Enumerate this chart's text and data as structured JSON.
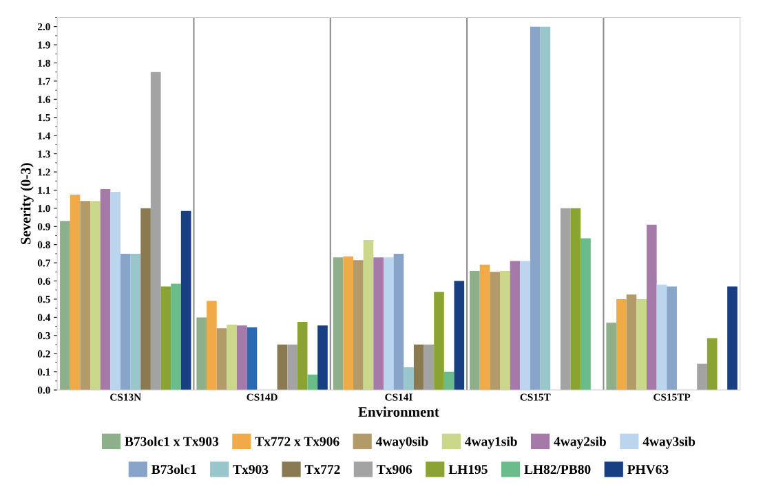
{
  "chart_data": {
    "type": "bar",
    "xlabel": "Environment",
    "ylabel": "Severity (0-3)",
    "categories": [
      "CS13N",
      "CS14D",
      "CS14I",
      "CS15T",
      "CS15TP"
    ],
    "ylim": [
      0,
      2.05
    ],
    "yticks": [
      {
        "value": 0,
        "label": "0.0"
      },
      {
        "value": 0.1,
        "label": "0.1"
      },
      {
        "value": 0.2,
        "label": "0.2"
      },
      {
        "value": 0.3,
        "label": "0.3"
      },
      {
        "value": 0.4,
        "label": "0.4"
      },
      {
        "value": 0.5,
        "label": "0.5"
      },
      {
        "value": 0.6,
        "label": "0.6"
      },
      {
        "value": 0.7,
        "label": "0.7"
      },
      {
        "value": 0.8,
        "label": "0.8"
      },
      {
        "value": 0.9,
        "label": "0.9"
      },
      {
        "value": 1,
        "label": "1.0"
      },
      {
        "value": 1.1,
        "label": "1.1"
      },
      {
        "value": 1.2,
        "label": "1.2"
      },
      {
        "value": 1.3,
        "label": "1.3"
      },
      {
        "value": 1.4,
        "label": "1.4"
      },
      {
        "value": 1.5,
        "label": "1.5"
      },
      {
        "value": 1.6,
        "label": "1.6"
      },
      {
        "value": 1.7,
        "label": "1.7"
      },
      {
        "value": 1.8,
        "label": "1.8"
      },
      {
        "value": 1.9,
        "label": "1.9"
      },
      {
        "value": 2,
        "label": "2.0"
      }
    ],
    "grid": false,
    "legend": "bottom",
    "series": [
      {
        "name": "B73olc1 x Tx903",
        "color": "#8db08a",
        "values": [
          0.93,
          0.4,
          0.73,
          0.655,
          0.37
        ]
      },
      {
        "name": "Tx772 x Tx906",
        "color": "#f0ab48",
        "values": [
          1.075,
          0.49,
          0.735,
          0.69,
          0.5
        ]
      },
      {
        "name": "4way0sib",
        "color": "#b39b69",
        "values": [
          1.04,
          0.34,
          0.715,
          0.65,
          0.525
        ]
      },
      {
        "name": "4way1sib",
        "color": "#cbd78a",
        "values": [
          1.04,
          0.36,
          0.825,
          0.655,
          0.5
        ]
      },
      {
        "name": "4way2sib",
        "color": "#a57aa8",
        "values": [
          1.105,
          0.355,
          0.73,
          0.71,
          0.91
        ]
      },
      {
        "name": "4way3sib",
        "color": "#bcd5ee",
        "colors": [
          "#bcd5ee",
          "#2b6ab0",
          "#bcd5ee",
          "#bcd5ee",
          "#bcd5ee"
        ],
        "values": [
          1.09,
          0.345,
          0.73,
          0.71,
          0.58
        ]
      },
      {
        "name": "B73olc1",
        "color": "#89a4c9",
        "values": [
          0.75,
          null,
          0.75,
          2.0,
          0.57
        ]
      },
      {
        "name": "Tx903",
        "color": "#99c6cb",
        "values": [
          0.75,
          null,
          0.125,
          2.0,
          null
        ]
      },
      {
        "name": "Tx772",
        "color": "#8a7a52",
        "values": [
          1.0,
          0.25,
          0.25,
          null,
          null
        ]
      },
      {
        "name": "Tx906",
        "color": "#a3a3a3",
        "values": [
          1.75,
          0.25,
          0.25,
          1.0,
          0.145
        ]
      },
      {
        "name": "LH195",
        "color": "#8ba333",
        "values": [
          0.57,
          0.375,
          0.54,
          1.0,
          0.285
        ]
      },
      {
        "name": "LH82/PB80",
        "color": "#6abd8b",
        "values": [
          0.585,
          0.085,
          0.1,
          0.835,
          null
        ]
      },
      {
        "name": "PHV63",
        "color": "#173f82",
        "values": [
          0.985,
          0.355,
          0.6,
          null,
          0.57
        ]
      }
    ]
  }
}
